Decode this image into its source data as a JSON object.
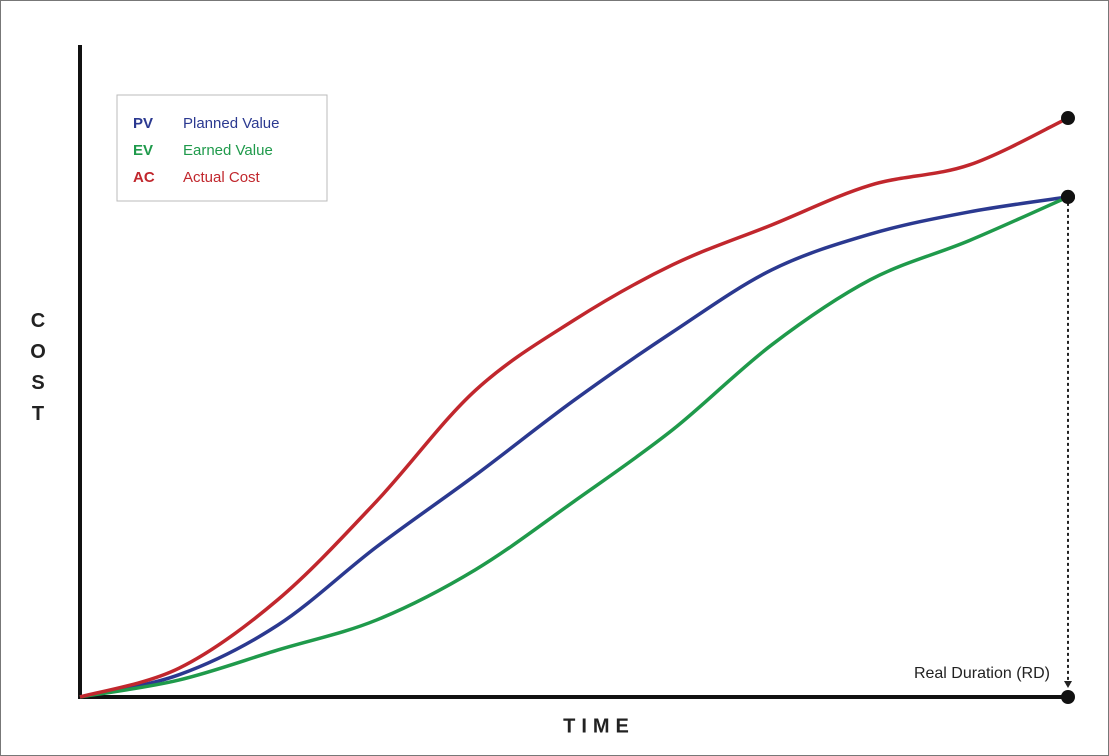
{
  "chart_data": {
    "type": "line",
    "x_label": "TIME",
    "y_label": "COST",
    "x": [
      0,
      10,
      20,
      30,
      40,
      50,
      60,
      70,
      80,
      90,
      100
    ],
    "xlim": [
      0,
      100
    ],
    "ylim": [
      0,
      100
    ],
    "series": [
      {
        "abbr": "PV",
        "name": "Planned Value",
        "color": "#2b3990",
        "values": [
          0,
          3.4,
          11,
          23,
          34,
          45.5,
          56,
          65.5,
          71,
          74.4,
          76.7
        ]
      },
      {
        "abbr": "EV",
        "name": "Earned Value",
        "color": "#1f9a4b",
        "values": [
          0,
          2.6,
          7.2,
          11.8,
          19.5,
          30,
          41,
          54,
          64,
          70,
          76.7
        ]
      },
      {
        "abbr": "AC",
        "name": "Actual Cost",
        "color": "#c1272d",
        "values": [
          0,
          4.4,
          14.9,
          30,
          47,
          57.8,
          66.3,
          72.4,
          78.5,
          81.6,
          88.8
        ]
      }
    ],
    "annotation": "Real Duration (RD)"
  }
}
